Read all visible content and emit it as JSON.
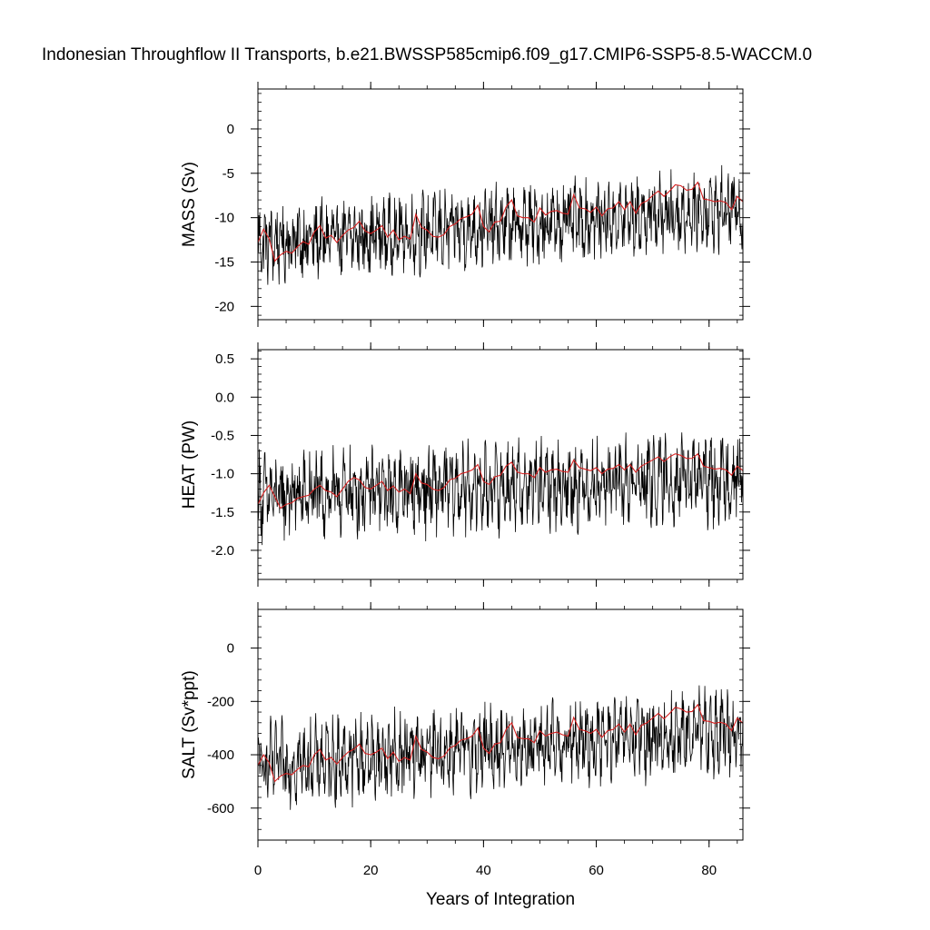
{
  "title": "Indonesian Throughflow II Transports, b.e21.BWSSP585cmip6.f09_g17.CMIP6-SSP5-8.5-WACCM.0",
  "chart_data": {
    "type": "line",
    "title": "Indonesian Throughflow II Transports, b.e21.BWSSP585cmip6.f09_g17.CMIP6-SSP5-8.5-WACCM.0",
    "xlabel": "Years of Integration",
    "xlim": [
      0,
      86
    ],
    "xticks": [
      0,
      20,
      40,
      60,
      80
    ],
    "xtick_labels": [
      "0",
      "20",
      "40",
      "60",
      "80"
    ],
    "grid": false,
    "legend": "none",
    "series_colors": {
      "monthly": "#000000",
      "annual_mean": "#d62020"
    },
    "panels": [
      {
        "id": "mass",
        "ylabel": "MASS (Sv)",
        "ylim": [
          -21.5,
          4.5
        ],
        "yticks": [
          0,
          -5,
          -10,
          -15,
          -20
        ],
        "ytick_labels": [
          "0",
          "-5",
          "-10",
          "-15",
          "-20"
        ],
        "monthly_start": -13.0,
        "monthly_end": -9.0,
        "monthly_amplitude": 3.2,
        "annual_mean": [
          -12.8,
          -11.3,
          -12.4,
          -14.9,
          -14.2,
          -13.8,
          -14.0,
          -13.3,
          -12.7,
          -13.0,
          -11.6,
          -10.9,
          -12.3,
          -12.0,
          -12.8,
          -12.0,
          -11.4,
          -11.1,
          -10.4,
          -11.5,
          -11.8,
          -11.4,
          -10.9,
          -12.2,
          -11.4,
          -12.5,
          -12.1,
          -12.4,
          -9.6,
          -11.1,
          -11.4,
          -12.1,
          -12.2,
          -11.9,
          -11.0,
          -10.7,
          -10.1,
          -9.9,
          -9.6,
          -8.6,
          -11.0,
          -11.6,
          -10.5,
          -10.4,
          -8.8,
          -8.0,
          -9.8,
          -10.0,
          -10.0,
          -10.5,
          -8.9,
          -9.7,
          -9.3,
          -9.2,
          -9.5,
          -9.6,
          -7.4,
          -8.9,
          -9.0,
          -9.4,
          -8.8,
          -9.8,
          -9.0,
          -8.9,
          -8.2,
          -9.1,
          -8.2,
          -9.5,
          -8.4,
          -8.1,
          -7.5,
          -7.0,
          -7.6,
          -7.0,
          -6.3,
          -6.4,
          -6.9,
          -6.8,
          -6.0,
          -7.9,
          -8.0,
          -8.2,
          -8.1,
          -8.3,
          -9.1,
          -7.6,
          -8.2
        ]
      },
      {
        "id": "heat",
        "ylabel": "HEAT (PW)",
        "ylim": [
          -2.38,
          0.62
        ],
        "yticks": [
          0.5,
          0.0,
          -0.5,
          -1.0,
          -1.5,
          -2.0
        ],
        "ytick_labels": [
          "0.5",
          "0.0",
          "-0.5",
          "-1.0",
          "-1.5",
          "-2.0"
        ],
        "monthly_start": -1.3,
        "monthly_end": -1.05,
        "monthly_amplitude": 0.42,
        "annual_mean": [
          -1.4,
          -1.25,
          -1.15,
          -1.3,
          -1.45,
          -1.4,
          -1.38,
          -1.32,
          -1.3,
          -1.28,
          -1.2,
          -1.15,
          -1.22,
          -1.24,
          -1.3,
          -1.2,
          -1.1,
          -1.05,
          -1.08,
          -1.18,
          -1.2,
          -1.15,
          -1.1,
          -1.22,
          -1.16,
          -1.24,
          -1.2,
          -1.26,
          -1.0,
          -1.12,
          -1.14,
          -1.2,
          -1.22,
          -1.18,
          -1.08,
          -1.06,
          -1.0,
          -0.98,
          -0.95,
          -0.88,
          -1.1,
          -1.14,
          -1.04,
          -1.02,
          -0.9,
          -0.85,
          -0.98,
          -1.0,
          -1.0,
          -1.05,
          -0.92,
          -0.98,
          -0.95,
          -0.94,
          -0.97,
          -0.98,
          -0.82,
          -0.92,
          -0.94,
          -0.96,
          -0.92,
          -1.0,
          -0.94,
          -0.93,
          -0.88,
          -0.95,
          -0.88,
          -0.98,
          -0.9,
          -0.86,
          -0.82,
          -0.78,
          -0.84,
          -0.78,
          -0.74,
          -0.76,
          -0.8,
          -0.8,
          -0.74,
          -0.9,
          -0.92,
          -0.94,
          -0.93,
          -0.95,
          -1.02,
          -0.9,
          -0.96
        ]
      },
      {
        "id": "salt",
        "ylabel": "SALT (Sv*ppt)",
        "ylim": [
          -720,
          145
        ],
        "yticks": [
          0,
          -200,
          -400,
          -600
        ],
        "ytick_labels": [
          "0",
          "-200",
          "-400",
          "-600"
        ],
        "monthly_start": -440,
        "monthly_end": -310,
        "monthly_amplitude": 115,
        "annual_mean": [
          -440,
          -400,
          -430,
          -500,
          -480,
          -470,
          -475,
          -455,
          -440,
          -445,
          -400,
          -380,
          -420,
          -410,
          -435,
          -410,
          -390,
          -380,
          -360,
          -395,
          -400,
          -390,
          -375,
          -415,
          -390,
          -425,
          -410,
          -420,
          -330,
          -380,
          -390,
          -410,
          -415,
          -405,
          -375,
          -365,
          -345,
          -340,
          -330,
          -300,
          -375,
          -395,
          -360,
          -355,
          -305,
          -280,
          -335,
          -340,
          -340,
          -355,
          -310,
          -330,
          -320,
          -315,
          -325,
          -330,
          -260,
          -305,
          -310,
          -320,
          -305,
          -335,
          -310,
          -305,
          -285,
          -315,
          -285,
          -325,
          -290,
          -280,
          -262,
          -245,
          -265,
          -245,
          -222,
          -228,
          -240,
          -238,
          -212,
          -272,
          -275,
          -282,
          -278,
          -285,
          -310,
          -262,
          -282
        ]
      }
    ]
  }
}
